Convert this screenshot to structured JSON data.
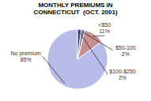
{
  "chart_data": {
    "type": "pie",
    "title": "MONTHLY PREMIUMS IN\nCONNECTICUT  (OCT. 2001)",
    "categories": [
      "No premium",
      "<$50",
      "$50-100",
      "$100-$250"
    ],
    "values": [
      85,
      11,
      2,
      2
    ],
    "value_labels": [
      "85%",
      "11%",
      "2%",
      "2%"
    ],
    "colors": [
      "#b8bce8",
      "#c49090",
      "#7878a8",
      "#484878"
    ],
    "data_labels": true
  }
}
